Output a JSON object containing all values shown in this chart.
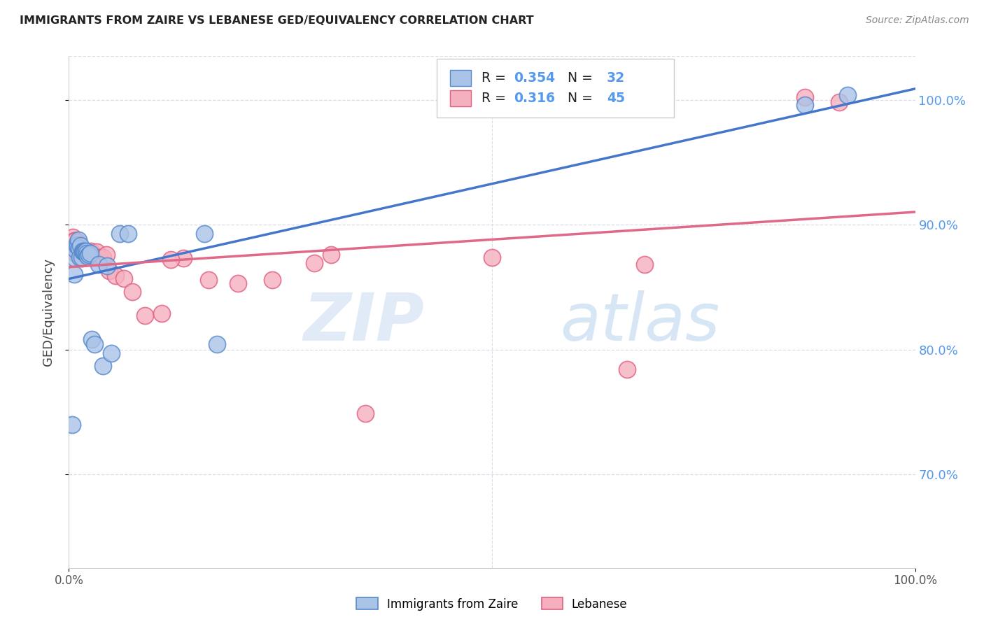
{
  "title": "IMMIGRANTS FROM ZAIRE VS LEBANESE GED/EQUIVALENCY CORRELATION CHART",
  "source": "Source: ZipAtlas.com",
  "ylabel": "GED/Equivalency",
  "watermark_zip": "ZIP",
  "watermark_atlas": "atlas",
  "legend_blue_r": "0.354",
  "legend_blue_n": "32",
  "legend_pink_r": "0.316",
  "legend_pink_n": "45",
  "legend_blue_label": "Immigrants from Zaire",
  "legend_pink_label": "Lebanese",
  "blue_fill": "#aac4e8",
  "blue_edge": "#5588cc",
  "pink_fill": "#f5b0c0",
  "pink_edge": "#e06080",
  "blue_line": "#4477cc",
  "pink_line": "#e06888",
  "ytick_color": "#5599ee",
  "grid_color": "#d8dde8",
  "bg_color": "#ffffff",
  "blue_x": [
    0.004,
    0.006,
    0.007,
    0.008,
    0.009,
    0.01,
    0.011,
    0.012,
    0.013,
    0.014,
    0.015,
    0.016,
    0.017,
    0.018,
    0.019,
    0.02,
    0.021,
    0.022,
    0.024,
    0.025,
    0.027,
    0.03,
    0.035,
    0.04,
    0.045,
    0.05,
    0.06,
    0.07,
    0.16,
    0.175,
    0.87,
    0.92
  ],
  "blue_y": [
    0.74,
    0.86,
    0.873,
    0.88,
    0.884,
    0.884,
    0.888,
    0.881,
    0.874,
    0.883,
    0.874,
    0.879,
    0.878,
    0.879,
    0.878,
    0.879,
    0.877,
    0.875,
    0.876,
    0.877,
    0.808,
    0.804,
    0.868,
    0.787,
    0.867,
    0.797,
    0.893,
    0.893,
    0.893,
    0.804,
    0.996,
    1.004
  ],
  "pink_x": [
    0.005,
    0.006,
    0.007,
    0.008,
    0.009,
    0.01,
    0.011,
    0.012,
    0.013,
    0.014,
    0.015,
    0.016,
    0.017,
    0.018,
    0.019,
    0.02,
    0.021,
    0.022,
    0.024,
    0.026,
    0.028,
    0.03,
    0.033,
    0.036,
    0.04,
    0.044,
    0.048,
    0.055,
    0.065,
    0.075,
    0.09,
    0.11,
    0.135,
    0.165,
    0.2,
    0.24,
    0.29,
    0.31,
    0.35,
    0.5,
    0.66,
    0.87,
    0.91,
    0.12,
    0.68
  ],
  "pink_y": [
    0.89,
    0.887,
    0.887,
    0.877,
    0.88,
    0.886,
    0.88,
    0.876,
    0.876,
    0.874,
    0.873,
    0.876,
    0.88,
    0.879,
    0.879,
    0.878,
    0.878,
    0.877,
    0.877,
    0.879,
    0.875,
    0.875,
    0.878,
    0.874,
    0.874,
    0.876,
    0.863,
    0.859,
    0.857,
    0.846,
    0.827,
    0.829,
    0.873,
    0.856,
    0.853,
    0.856,
    0.869,
    0.876,
    0.749,
    0.874,
    0.784,
    1.002,
    0.998,
    0.872,
    0.868
  ],
  "xlim": [
    0.0,
    1.0
  ],
  "ylim": [
    0.625,
    1.035
  ],
  "yticks": [
    0.7,
    0.8,
    0.9,
    1.0
  ],
  "ytick_labels": [
    "70.0%",
    "80.0%",
    "90.0%",
    "100.0%"
  ],
  "xtick_positions": [
    0.0,
    1.0
  ],
  "xtick_labels": [
    "0.0%",
    "100.0%"
  ]
}
